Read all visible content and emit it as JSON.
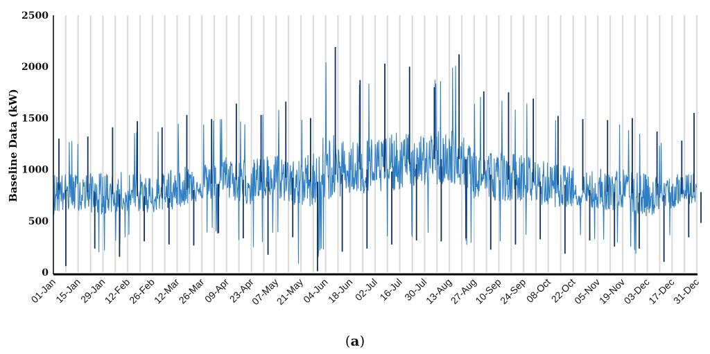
{
  "chart_data": {
    "type": "line",
    "ylabel": "Baseline Data (kW)",
    "xlabel": "",
    "title": "",
    "ylim": [
      0,
      2500
    ],
    "yticks": [
      0,
      500,
      1000,
      1500,
      2000,
      2500
    ],
    "categories": [
      "01-Jan",
      "15-Jan",
      "29-Jan",
      "12-Feb",
      "26-Feb",
      "12-Mar",
      "26-Mar",
      "09-Apr",
      "23-Apr",
      "07-May",
      "21-May",
      "04-Jun",
      "18-Jun",
      "02-Jul",
      "16-Jul",
      "30-Jul",
      "13-Aug",
      "27-Aug",
      "10-Sep",
      "24-Sep",
      "08-Oct",
      "22-Oct",
      "05-Nov",
      "19-Nov",
      "03-Dec",
      "17-Dec",
      "31-Dec"
    ],
    "grid": "vertical",
    "colors": {
      "series": "#2f7fc4",
      "peaks": "#0f2f5c",
      "grid": "#d9d9d9",
      "axis": "#000000"
    },
    "series": [
      {
        "values_biweekly_typical": [
          800,
          780,
          760,
          740,
          720,
          800,
          860,
          900,
          880,
          920,
          880,
          950,
          1000,
          980,
          1050,
          1100,
          1100,
          950,
          900,
          880,
          850,
          800,
          780,
          770,
          750,
          760,
          780
        ],
        "values_biweekly_max": [
          1300,
          1320,
          1410,
          1470,
          1410,
          1530,
          1490,
          1640,
          1530,
          1660,
          1500,
          2190,
          1870,
          2030,
          2000,
          1800,
          2120,
          1760,
          1750,
          1690,
          1520,
          1490,
          1480,
          1500,
          1370,
          1280,
          1550
        ],
        "values_biweekly_min": [
          60,
          230,
          150,
          300,
          270,
          260,
          380,
          330,
          170,
          340,
          10,
          200,
          230,
          270,
          310,
          300,
          330,
          220,
          270,
          320,
          180,
          310,
          250,
          230,
          100,
          340,
          480
        ]
      }
    ]
  },
  "caption": {
    "open": "(",
    "letter": "a",
    "close": ")"
  }
}
